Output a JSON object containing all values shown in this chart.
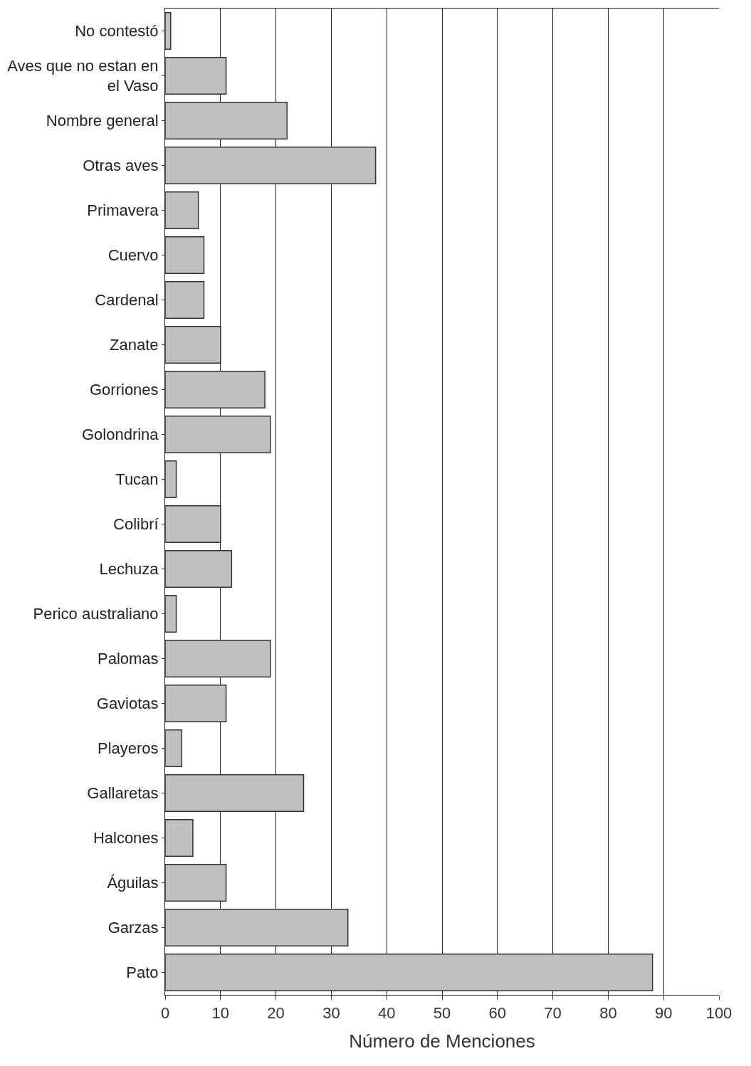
{
  "chart_data": {
    "type": "bar",
    "orientation": "horizontal",
    "xlabel": "Número de Menciones",
    "categories": [
      "No contestó",
      "Aves que no estan en el Vaso",
      "Nombre general",
      "Otras aves",
      "Primavera",
      "Cuervo",
      "Cardenal",
      "Zanate",
      "Gorriones",
      "Golondrina",
      "Tucan",
      "Colibrí",
      "Lechuza",
      "Perico australiano",
      "Palomas",
      "Gaviotas",
      "Playeros",
      "Gallaretas",
      "Halcones",
      "Águilas",
      "Garzas",
      "Pato"
    ],
    "values": [
      1,
      11,
      22,
      38,
      6,
      7,
      7,
      10,
      18,
      19,
      2,
      10,
      12,
      2,
      19,
      11,
      3,
      25,
      5,
      11,
      33,
      88
    ],
    "color": "#c0c0c0",
    "xlim": [
      0,
      100
    ],
    "xticks": [
      0,
      10,
      20,
      30,
      40,
      50,
      60,
      70,
      80,
      90,
      100
    ],
    "grid": "x"
  }
}
